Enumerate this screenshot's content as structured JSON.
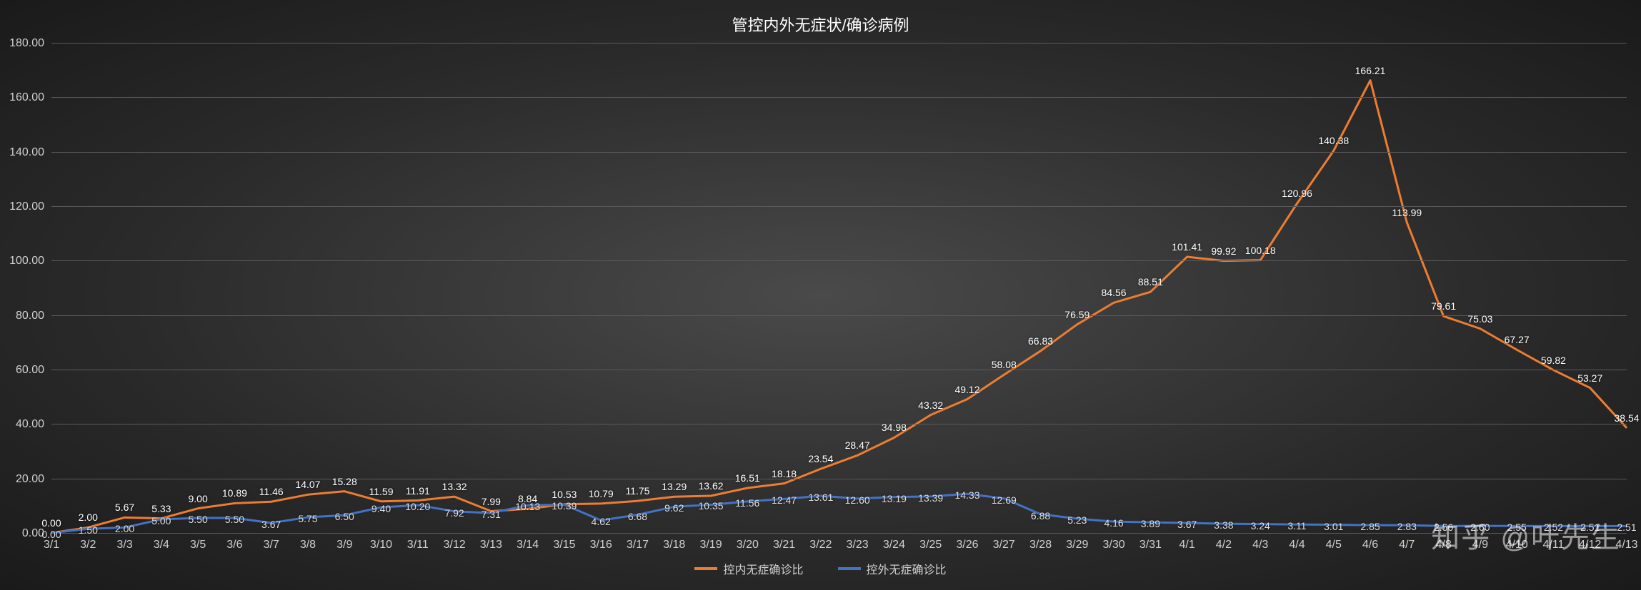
{
  "chart": {
    "type": "line",
    "title": "管控内外无症状/确诊病例",
    "title_fontsize": 22,
    "title_color": "#ffffff",
    "background_gradient": [
      "#4a4a4a",
      "#2a2a2a",
      "#1a1a1a"
    ],
    "grid_color": "#5a5a5a",
    "axis_label_color": "#d0d0d0",
    "axis_fontsize": 16,
    "data_label_fontsize": 14,
    "ylim": [
      0,
      180
    ],
    "ytick_step": 20,
    "yticks": [
      "0.00",
      "20.00",
      "40.00",
      "60.00",
      "80.00",
      "100.00",
      "120.00",
      "140.00",
      "160.00",
      "180.00"
    ],
    "categories": [
      "3/1",
      "3/2",
      "3/3",
      "3/4",
      "3/5",
      "3/6",
      "3/7",
      "3/8",
      "3/9",
      "3/10",
      "3/11",
      "3/12",
      "3/13",
      "3/14",
      "3/15",
      "3/16",
      "3/17",
      "3/18",
      "3/19",
      "3/20",
      "3/21",
      "3/22",
      "3/23",
      "3/24",
      "3/25",
      "3/26",
      "3/27",
      "3/28",
      "3/29",
      "3/30",
      "3/31",
      "4/1",
      "4/2",
      "4/3",
      "4/4",
      "4/5",
      "4/6",
      "4/7",
      "4/8",
      "4/9",
      "4/10",
      "4/11",
      "4/12",
      "4/13"
    ],
    "series": [
      {
        "name": "控内无症确诊比",
        "color": "#ed7d31",
        "line_width": 3,
        "values": [
          0.0,
          2.0,
          5.67,
          5.33,
          9.0,
          10.89,
          11.46,
          14.07,
          15.28,
          11.59,
          11.91,
          13.32,
          7.99,
          8.84,
          10.53,
          10.79,
          11.75,
          13.29,
          13.62,
          16.51,
          18.18,
          23.54,
          28.47,
          34.98,
          43.32,
          49.12,
          58.08,
          66.83,
          76.59,
          84.56,
          88.51,
          101.41,
          99.92,
          100.18,
          120.96,
          140.38,
          166.21,
          113.99,
          79.61,
          75.03,
          67.27,
          59.82,
          53.27,
          38.54
        ]
      },
      {
        "name": "控外无症确诊比",
        "color": "#4472c4",
        "line_width": 3,
        "values": [
          0.0,
          1.5,
          2.0,
          5.0,
          5.5,
          5.5,
          3.67,
          5.75,
          6.5,
          9.4,
          10.2,
          7.92,
          7.31,
          10.13,
          10.39,
          4.62,
          6.68,
          9.62,
          10.35,
          11.56,
          12.47,
          13.61,
          12.6,
          13.19,
          13.39,
          14.33,
          12.69,
          6.88,
          5.23,
          4.16,
          3.89,
          3.67,
          3.38,
          3.24,
          3.11,
          3.01,
          2.85,
          2.83,
          2.56,
          2.6,
          2.55,
          2.52,
          2.51,
          2.51
        ]
      }
    ],
    "legend": {
      "position": "bottom-center",
      "items": [
        "控内无症确诊比",
        "控外无症确诊比"
      ]
    }
  },
  "watermark": "知乎 @叶先生"
}
